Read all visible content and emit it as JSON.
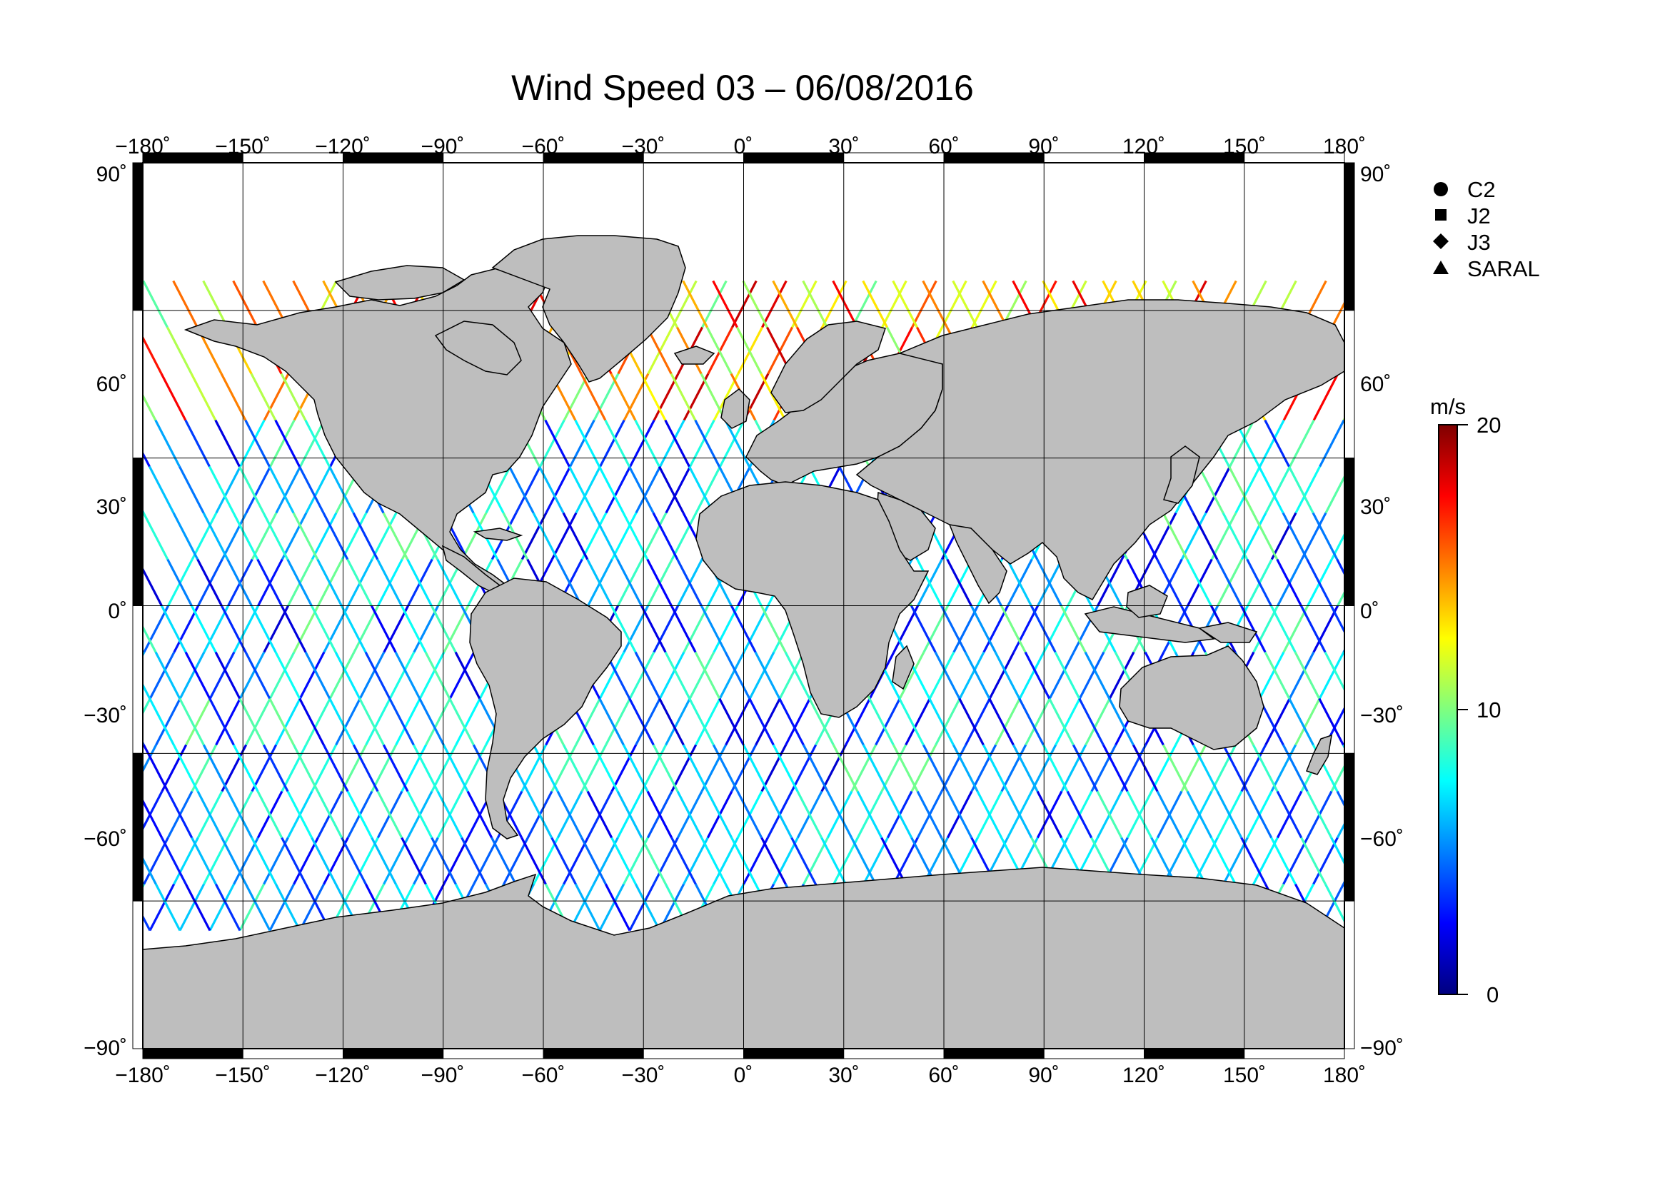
{
  "title": "Wind Speed 03 – 06/08/2016",
  "colors": {
    "land": "#bebebe",
    "ocean": "#ffffff",
    "grid": "#000000",
    "colorscale": [
      "#00007f",
      "#0000ff",
      "#007fff",
      "#00ffff",
      "#7fff7f",
      "#ffff00",
      "#ff7f00",
      "#ff0000",
      "#7f0000"
    ]
  },
  "map": {
    "projection": "equirectangular",
    "lon_range": [
      -180,
      180
    ],
    "lat_range": [
      -90,
      90
    ],
    "lon_ticks": [
      "−180˚",
      "−150˚",
      "−120˚",
      "−90˚",
      "−60˚",
      "−30˚",
      "0˚",
      "30˚",
      "60˚",
      "90˚",
      "120˚",
      "150˚",
      "180˚"
    ],
    "lat_ticks_left": [
      "90˚",
      "60˚",
      "30˚",
      "0˚",
      "−30˚",
      "−60˚",
      "−90˚"
    ],
    "lat_ticks_right": [
      "90˚",
      "60˚",
      "30˚",
      "0˚",
      "−30˚",
      "−60˚",
      "−90˚"
    ],
    "grid": true
  },
  "legend": {
    "items": [
      {
        "label": "C2",
        "symbol": "circle-icon"
      },
      {
        "label": "J2",
        "symbol": "square-icon"
      },
      {
        "label": "J3",
        "symbol": "diamond-icon"
      },
      {
        "label": "SARAL",
        "symbol": "triangle-icon"
      }
    ]
  },
  "colorbar": {
    "unit": "m/s",
    "min": 0,
    "max": 20,
    "tick_labels": [
      "20",
      "10",
      "0"
    ]
  }
}
